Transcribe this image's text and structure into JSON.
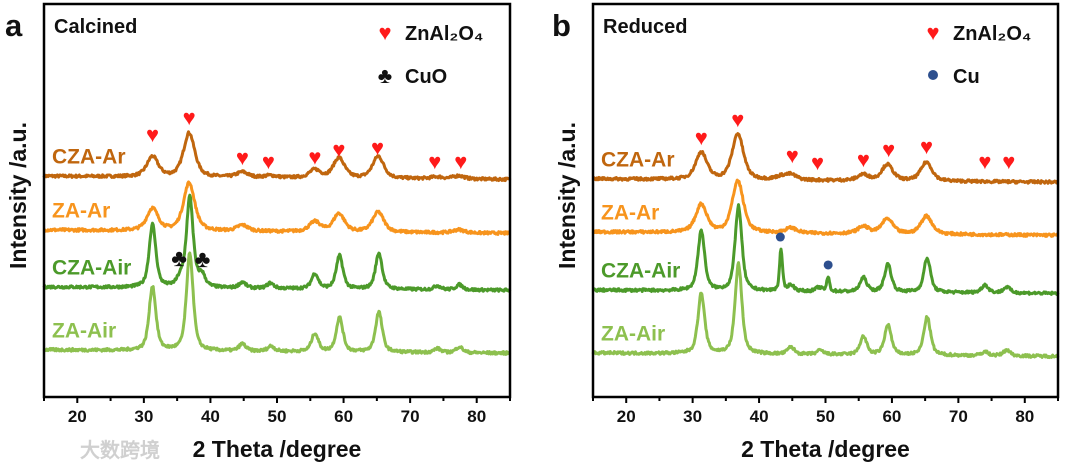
{
  "watermark": "大数跨境",
  "chart_data": [
    {
      "type": "line",
      "panel_letter": "a",
      "title": "Calcined",
      "xlabel": "2 Theta /degree",
      "ylabel": "Intensity /a.u.",
      "xlim": [
        15,
        85
      ],
      "ylim": [
        0,
        100
      ],
      "xticks": [
        20,
        30,
        40,
        50,
        60,
        70,
        80
      ],
      "grid": false,
      "legend": [
        {
          "symbol": "heart",
          "label": "ZnAl₂O₄",
          "color": "#ff1a1a"
        },
        {
          "symbol": "club",
          "label": "CuO",
          "color": "#111111"
        }
      ],
      "legend_placement": "top-right",
      "series": [
        {
          "name": "CZA-Ar",
          "color": "#c0660e",
          "offset": 56.2,
          "fwhm": 2.0,
          "peaks": [
            [
              31.3,
              5.1
            ],
            [
              36.8,
              11.2
            ],
            [
              44.8,
              1.3
            ],
            [
              49,
              0.5
            ],
            [
              55.7,
              2
            ],
            [
              59.3,
              5.1
            ],
            [
              65.2,
              5.6
            ],
            [
              74,
              0.5
            ],
            [
              77.3,
              0.8
            ]
          ]
        },
        {
          "name": "ZA-Ar",
          "color": "#f7941d",
          "offset": 42.5,
          "fwhm": 2.0,
          "peaks": [
            [
              31.3,
              5.6
            ],
            [
              36.8,
              12.2
            ],
            [
              44.8,
              1.5
            ],
            [
              55.7,
              2.5
            ],
            [
              59.3,
              4.6
            ],
            [
              65.2,
              5.1
            ],
            [
              77.3,
              0.8
            ]
          ]
        },
        {
          "name": "CZA-Air",
          "color": "#4c9a2a",
          "offset": 28,
          "fwhm": 1.2,
          "peaks": [
            [
              31.3,
              16
            ],
            [
              35.5,
              2
            ],
            [
              36.9,
              22.9
            ],
            [
              38.7,
              3
            ],
            [
              44.8,
              1.5
            ],
            [
              49,
              1.3
            ],
            [
              55.7,
              3.8
            ],
            [
              59.4,
              8.4
            ],
            [
              65.3,
              9.2
            ],
            [
              74.1,
              1
            ],
            [
              77.4,
              1.3
            ]
          ]
        },
        {
          "name": "ZA-Air",
          "color": "#8dc04f",
          "offset": 12,
          "fwhm": 1.2,
          "peaks": [
            [
              31.3,
              16.3
            ],
            [
              36.9,
              24.7
            ],
            [
              44.8,
              1.8
            ],
            [
              49.1,
              1.3
            ],
            [
              55.7,
              4.6
            ],
            [
              59.4,
              8.7
            ],
            [
              65.3,
              10.2
            ],
            [
              74.1,
              1
            ],
            [
              77.4,
              1.5
            ]
          ]
        }
      ],
      "markers": [
        {
          "symbol": "heart",
          "x": 31.3,
          "y": 66.7
        },
        {
          "symbol": "heart",
          "x": 36.8,
          "y": 71
        },
        {
          "symbol": "heart",
          "x": 44.8,
          "y": 60.8
        },
        {
          "symbol": "heart",
          "x": 48.7,
          "y": 59.8
        },
        {
          "symbol": "heart",
          "x": 55.7,
          "y": 61
        },
        {
          "symbol": "heart",
          "x": 59.3,
          "y": 62.8
        },
        {
          "symbol": "heart",
          "x": 65.1,
          "y": 63.4
        },
        {
          "symbol": "heart",
          "x": 73.7,
          "y": 59.8
        },
        {
          "symbol": "heart",
          "x": 77.6,
          "y": 59.8
        },
        {
          "symbol": "club",
          "x": 35.3,
          "y": 35.1
        },
        {
          "symbol": "club",
          "x": 38.8,
          "y": 34.9
        }
      ]
    },
    {
      "type": "line",
      "panel_letter": "b",
      "title": "Reduced",
      "xlabel": "2 Theta /degree",
      "ylabel": "Intensity /a.u.",
      "xlim": [
        15,
        85
      ],
      "ylim": [
        0,
        100
      ],
      "xticks": [
        20,
        30,
        40,
        50,
        60,
        70,
        80
      ],
      "grid": false,
      "legend": [
        {
          "symbol": "heart",
          "label": "ZnAl₂O₄",
          "color": "#ff1a1a"
        },
        {
          "symbol": "dot",
          "label": "Cu",
          "color": "#2d4f8e"
        }
      ],
      "legend_placement": "top-right",
      "series": [
        {
          "name": "CZA-Ar",
          "color": "#c0660e",
          "offset": 55.5,
          "fwhm": 2.0,
          "peaks": [
            [
              31.3,
              6.9
            ],
            [
              36.8,
              11.7
            ],
            [
              43.3,
              0.8
            ],
            [
              44.8,
              1.3
            ],
            [
              55.7,
              1.5
            ],
            [
              59.3,
              4.1
            ],
            [
              65.2,
              4.8
            ]
          ]
        },
        {
          "name": "ZA-Ar",
          "color": "#f7941d",
          "offset": 42,
          "fwhm": 2.0,
          "peaks": [
            [
              31.3,
              7.1
            ],
            [
              36.8,
              13.2
            ],
            [
              44.8,
              1.3
            ],
            [
              55.7,
              1.8
            ],
            [
              59.3,
              3.8
            ],
            [
              65.2,
              4.6
            ]
          ]
        },
        {
          "name": "CZA-Air",
          "color": "#4c9a2a",
          "offset": 27.2,
          "fwhm": 1.2,
          "peaks": [
            [
              31.3,
              15.3
            ],
            [
              36.9,
              21.6
            ],
            [
              43.3,
              10.7,
              0.5
            ],
            [
              44.8,
              1.5
            ],
            [
              49,
              1
            ],
            [
              50.4,
              3.6,
              0.5
            ],
            [
              55.7,
              3.6
            ],
            [
              59.4,
              7.1
            ],
            [
              65.3,
              8.7
            ],
            [
              74,
              2
            ],
            [
              77.3,
              1.5
            ]
          ]
        },
        {
          "name": "ZA-Air",
          "color": "#8dc04f",
          "offset": 11.2,
          "fwhm": 1.2,
          "peaks": [
            [
              31.3,
              15.3
            ],
            [
              36.9,
              22.9
            ],
            [
              44.8,
              1.8
            ],
            [
              49.2,
              1
            ],
            [
              55.7,
              4.6
            ],
            [
              59.4,
              7.6
            ],
            [
              65.3,
              9.7
            ],
            [
              74,
              1
            ],
            [
              77.3,
              1.5
            ]
          ]
        }
      ],
      "markers": [
        {
          "symbol": "heart",
          "x": 31.3,
          "y": 65.9
        },
        {
          "symbol": "heart",
          "x": 36.8,
          "y": 70.5
        },
        {
          "symbol": "heart",
          "x": 45,
          "y": 61.3
        },
        {
          "symbol": "heart",
          "x": 48.8,
          "y": 59.5
        },
        {
          "symbol": "heart",
          "x": 55.7,
          "y": 60.3
        },
        {
          "symbol": "heart",
          "x": 59.5,
          "y": 62.8
        },
        {
          "symbol": "heart",
          "x": 65.2,
          "y": 63.6
        },
        {
          "symbol": "heart",
          "x": 74,
          "y": 59.8
        },
        {
          "symbol": "heart",
          "x": 77.6,
          "y": 59.8
        },
        {
          "symbol": "dot",
          "x": 43.2,
          "y": 40.7
        },
        {
          "symbol": "dot",
          "x": 50.4,
          "y": 33.6
        }
      ]
    }
  ]
}
